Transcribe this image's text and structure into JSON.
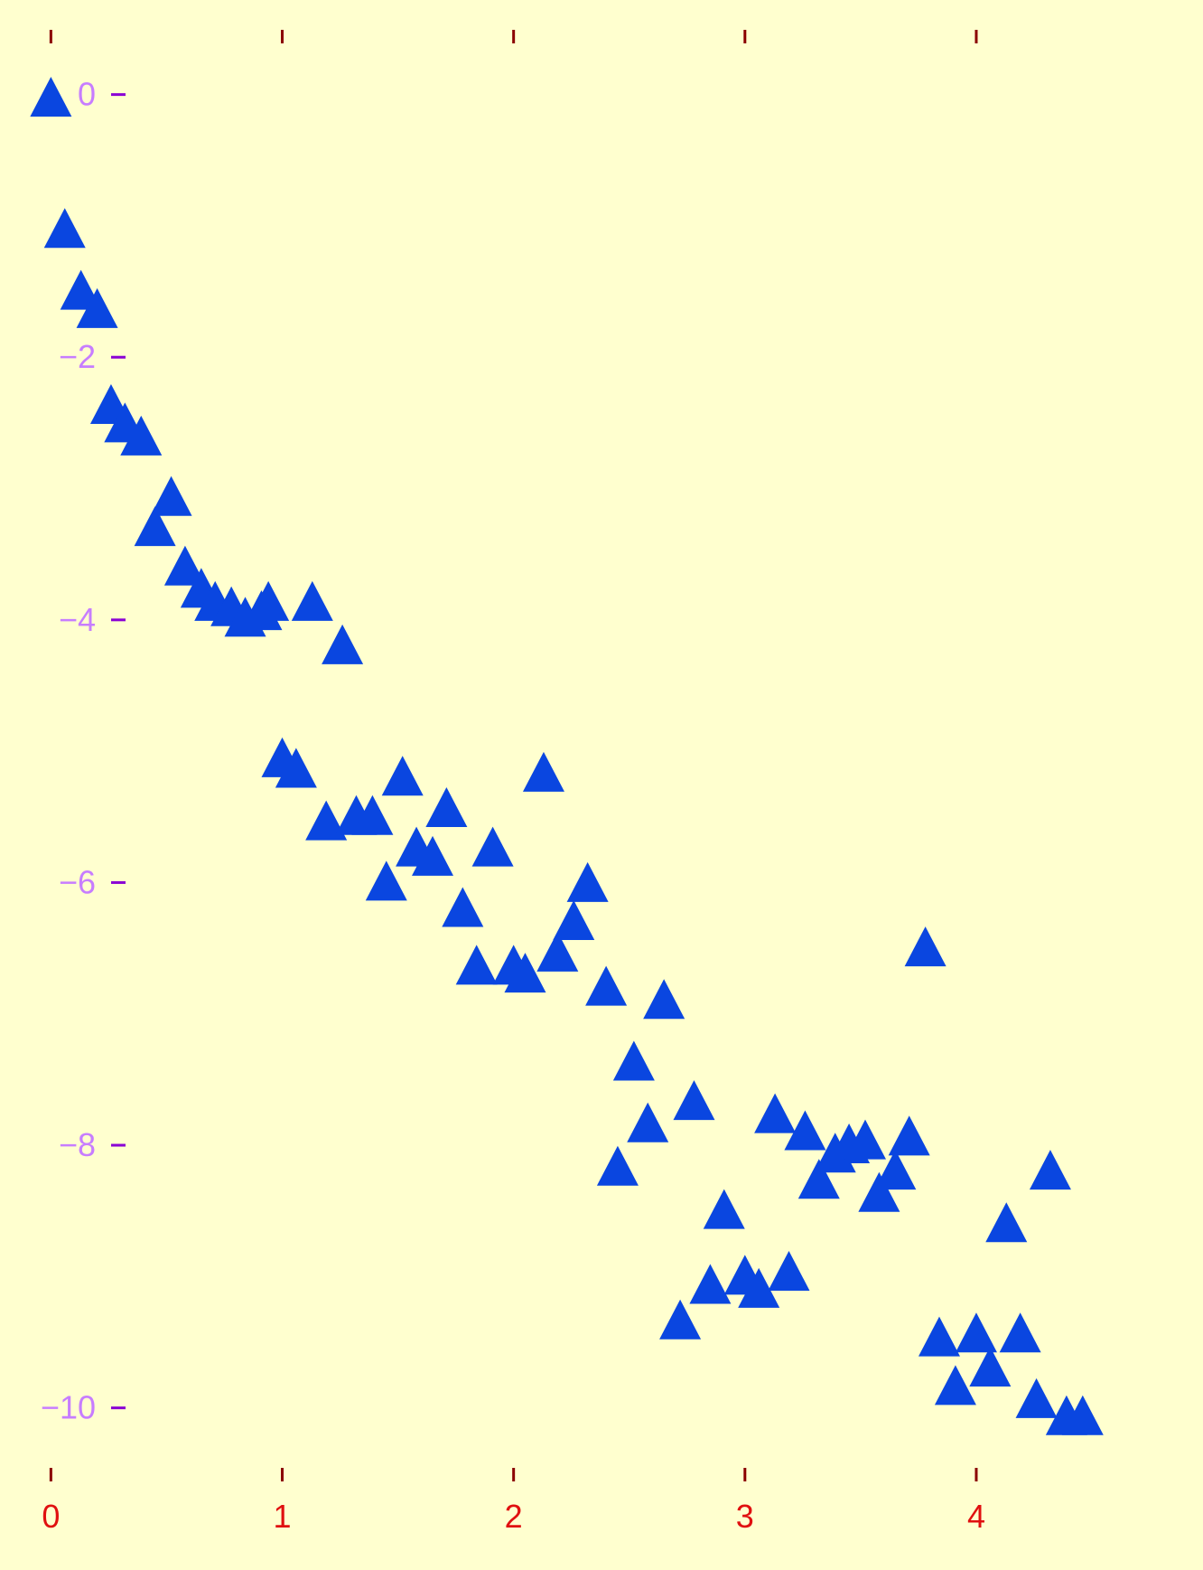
{
  "chart_data": {
    "type": "scatter",
    "title": "",
    "xlabel": "",
    "ylabel": "",
    "xlim": [
      -0.22,
      4.98
    ],
    "ylim": [
      -11.2,
      0.72
    ],
    "x_ticks": [
      0,
      1,
      2,
      3,
      4
    ],
    "x_tick_labels": [
      "0",
      "1",
      "2",
      "3",
      "4"
    ],
    "y_ticks": [
      0,
      -2,
      -4,
      -6,
      -8,
      -10
    ],
    "y_tick_labels": [
      "0",
      "−2",
      "−4",
      "−6",
      "−8",
      "−10"
    ],
    "grid": false,
    "legend": "none",
    "marker": "triangle",
    "colors": {
      "background": "#ffffcf",
      "marker": "#0a46e0",
      "x_tick_label": "#e01010",
      "x_tick_mark": "#8b0000",
      "y_tick_label": "#c77dff",
      "y_tick_mark": "#8a00d4"
    },
    "series": [
      {
        "points": [
          [
            0.0,
            -0.03
          ],
          [
            0.06,
            -1.03
          ],
          [
            0.13,
            -1.5
          ],
          [
            0.2,
            -1.64
          ],
          [
            0.26,
            -2.37
          ],
          [
            0.32,
            -2.51
          ],
          [
            0.39,
            -2.61
          ],
          [
            0.45,
            -3.3
          ],
          [
            0.52,
            -3.07
          ],
          [
            0.58,
            -3.6
          ],
          [
            0.65,
            -3.77
          ],
          [
            0.71,
            -3.87
          ],
          [
            0.78,
            -3.91
          ],
          [
            0.84,
            -3.99
          ],
          [
            0.91,
            -3.94
          ],
          [
            0.94,
            -3.87
          ],
          [
            1.13,
            -3.87
          ],
          [
            1.26,
            -4.2
          ],
          [
            1.0,
            -5.06
          ],
          [
            1.06,
            -5.14
          ],
          [
            1.19,
            -5.54
          ],
          [
            1.32,
            -5.5
          ],
          [
            1.39,
            -5.5
          ],
          [
            1.45,
            -6.0
          ],
          [
            1.52,
            -5.2
          ],
          [
            1.58,
            -5.74
          ],
          [
            1.65,
            -5.81
          ],
          [
            1.71,
            -5.44
          ],
          [
            1.78,
            -6.2
          ],
          [
            1.84,
            -6.64
          ],
          [
            1.91,
            -5.74
          ],
          [
            2.0,
            -6.64
          ],
          [
            2.05,
            -6.7
          ],
          [
            2.13,
            -5.17
          ],
          [
            2.19,
            -6.54
          ],
          [
            2.26,
            -6.3
          ],
          [
            2.32,
            -6.01
          ],
          [
            2.4,
            -6.8
          ],
          [
            2.52,
            -7.37
          ],
          [
            2.58,
            -7.84
          ],
          [
            2.45,
            -8.17
          ],
          [
            2.65,
            -6.9
          ],
          [
            2.72,
            -9.34
          ],
          [
            2.78,
            -7.67
          ],
          [
            2.85,
            -9.07
          ],
          [
            2.91,
            -8.5
          ],
          [
            3.0,
            -9.0
          ],
          [
            3.06,
            -9.1
          ],
          [
            3.13,
            -7.77
          ],
          [
            3.19,
            -8.97
          ],
          [
            3.26,
            -7.9
          ],
          [
            3.32,
            -8.27
          ],
          [
            3.39,
            -8.07
          ],
          [
            3.45,
            -8.0
          ],
          [
            3.52,
            -7.97
          ],
          [
            3.58,
            -8.37
          ],
          [
            3.65,
            -8.2
          ],
          [
            3.71,
            -7.94
          ],
          [
            3.78,
            -6.5
          ],
          [
            3.84,
            -9.47
          ],
          [
            3.91,
            -9.84
          ],
          [
            4.0,
            -9.44
          ],
          [
            4.06,
            -9.7
          ],
          [
            4.13,
            -8.6
          ],
          [
            4.19,
            -9.44
          ],
          [
            4.26,
            -9.94
          ],
          [
            4.32,
            -8.2
          ],
          [
            4.39,
            -10.07
          ],
          [
            4.46,
            -10.07
          ]
        ]
      }
    ]
  }
}
